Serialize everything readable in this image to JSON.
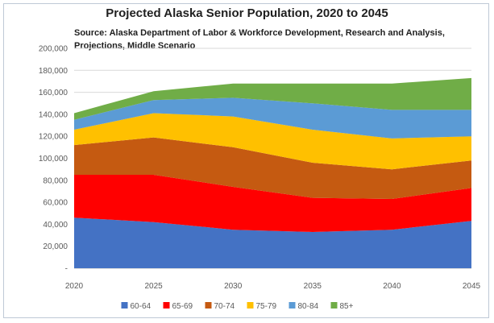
{
  "chart_data": {
    "type": "area",
    "stacked": true,
    "title": "Projected Alaska Senior Population, 2020 to 2045",
    "subtitle": "Source: Alaska Department of Labor & Workforce Development, Research and Analysis, Projections, Middle Scenario",
    "x": [
      "2020",
      "2025",
      "2030",
      "2035",
      "2040",
      "2045"
    ],
    "ylim": [
      0,
      200000
    ],
    "yticks": [
      "-",
      "20,000",
      "40,000",
      "60,000",
      "80,000",
      "100,000",
      "120,000",
      "140,000",
      "160,000",
      "180,000",
      "200,000"
    ],
    "grid": true,
    "legend_position": "bottom",
    "series": [
      {
        "name": "60-64",
        "color": "#4472c4",
        "values": [
          46000,
          42000,
          35000,
          33000,
          35000,
          43000
        ]
      },
      {
        "name": "65-69",
        "color": "#ff0000",
        "values": [
          39000,
          43000,
          39000,
          31000,
          28000,
          30000
        ]
      },
      {
        "name": "70-74",
        "color": "#c55a11",
        "values": [
          27000,
          34000,
          36000,
          32000,
          27000,
          25000
        ]
      },
      {
        "name": "75-79",
        "color": "#ffc000",
        "values": [
          14000,
          22000,
          28000,
          30000,
          28000,
          22000
        ]
      },
      {
        "name": "80-84",
        "color": "#5b9bd5",
        "values": [
          9000,
          12000,
          17000,
          24000,
          26000,
          24000
        ]
      },
      {
        "name": "85+",
        "color": "#70ad47",
        "values": [
          6000,
          8000,
          13000,
          18000,
          24000,
          29000
        ]
      }
    ]
  }
}
